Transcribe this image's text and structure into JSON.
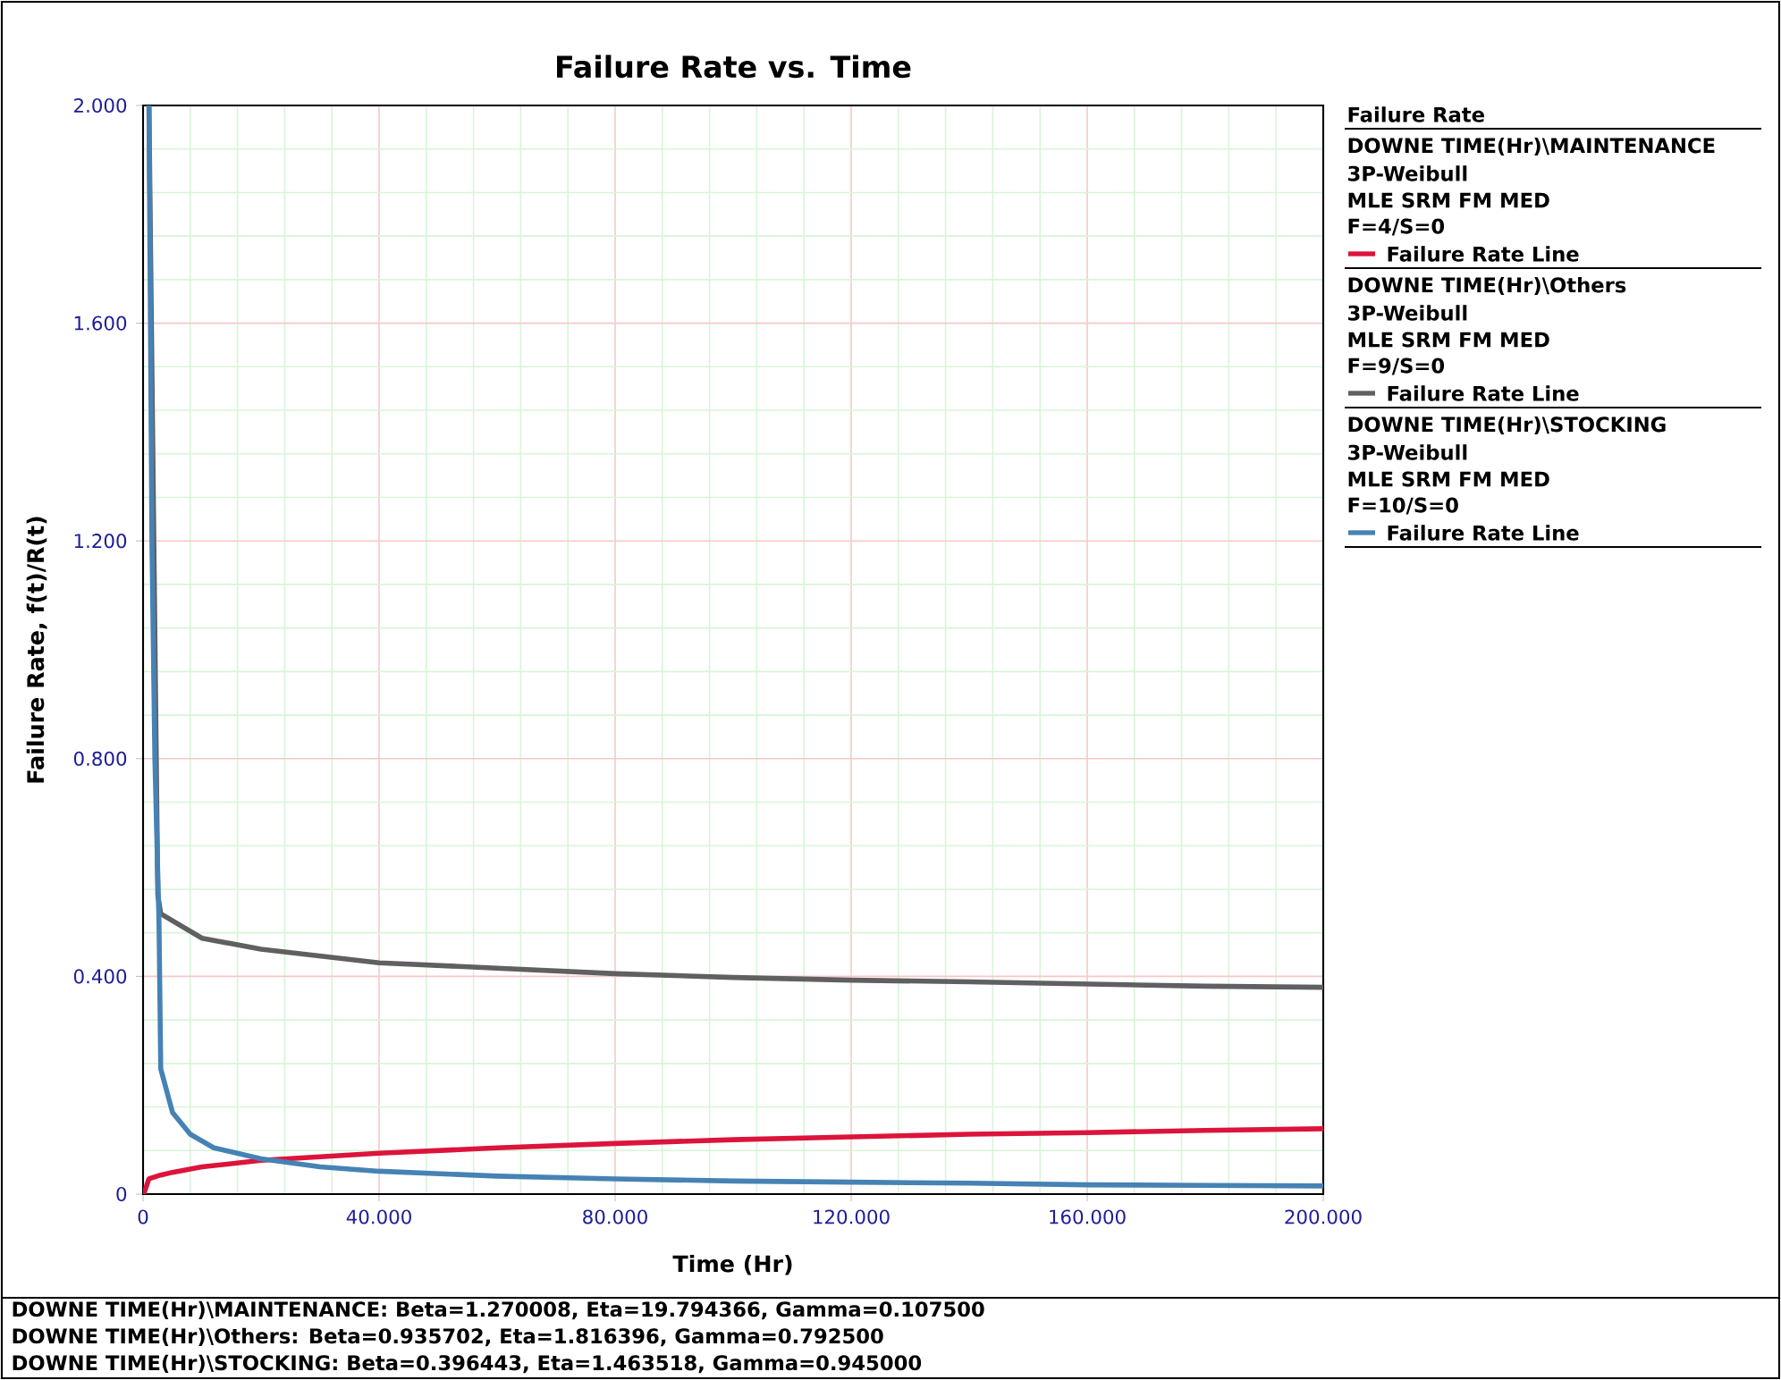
{
  "chart_data": {
    "type": "line",
    "title": "Failure Rate vs. Time",
    "xlabel": "Time (Hr)",
    "ylabel": "Failure Rate, f(t)/R(t)",
    "legend_title": "Failure Rate",
    "legend": "right",
    "grid": true,
    "xlim": [
      0,
      200
    ],
    "ylim": [
      0,
      2
    ],
    "xticks": [
      0,
      {
        "value": 40,
        "label": "40.000"
      },
      {
        "value": 80,
        "label": "80.000"
      },
      {
        "value": 120,
        "label": "120.000"
      },
      {
        "value": 160,
        "label": "160.000"
      },
      {
        "value": 200,
        "label": "200.000"
      }
    ],
    "yticks": [
      0,
      {
        "value": 0.4,
        "label": "0.400"
      },
      {
        "value": 0.8,
        "label": "0.800"
      },
      {
        "value": 1.2,
        "label": "1.200"
      },
      {
        "value": 1.6,
        "label": "1.600"
      },
      {
        "value": 2,
        "label": "2.000"
      }
    ],
    "series": [
      {
        "name": "Failure Rate Line",
        "color": "#dc143c",
        "x": [
          0.1075,
          1,
          3,
          5,
          10,
          20,
          40,
          60,
          80,
          100,
          120,
          140,
          160,
          180,
          200
        ],
        "values": [
          0,
          0.028,
          0.035,
          0.04,
          0.05,
          0.062,
          0.075,
          0.085,
          0.093,
          0.1,
          0.105,
          0.11,
          0.113,
          0.117,
          0.12
        ]
      },
      {
        "name": "Failure Rate Line",
        "color": "#606060",
        "x": [
          1,
          2.5,
          3,
          10,
          20,
          40,
          60,
          80,
          100,
          120,
          140,
          160,
          180,
          200
        ],
        "values": [
          2,
          0.55,
          0.515,
          0.47,
          0.45,
          0.425,
          0.415,
          0.405,
          0.398,
          0.393,
          0.39,
          0.386,
          0.382,
          0.38
        ]
      },
      {
        "name": "Failure Rate Line",
        "color": "#4682b4",
        "x": [
          1,
          1.5,
          2,
          2.7,
          3,
          5,
          8,
          12,
          20,
          30,
          40,
          60,
          80,
          100,
          120,
          140,
          160,
          180,
          200
        ],
        "values": [
          2,
          1.2,
          0.8,
          0.5,
          0.23,
          0.15,
          0.11,
          0.085,
          0.065,
          0.05,
          0.042,
          0.033,
          0.028,
          0.024,
          0.022,
          0.02,
          0.017,
          0.016,
          0.015
        ]
      }
    ],
    "annotations": [
      "DOWNE TIME(Hr)\\MAINTENANCE",
      "3P-Weibull",
      "MLE SRM FM MED",
      "F=4/S=0",
      "DOWNE TIME(Hr)\\Others",
      "3P-Weibull",
      "MLE SRM FM MED",
      "F=9/S=0",
      "DOWNE TIME(Hr)\\STOCKING",
      "3P-Weibull",
      "MLE SRM FM MED",
      "F=10/S=0",
      "DOWNE TIME(Hr)\\MAINTENANCE: Beta=1.270008, Eta=19.794366, Gamma=0.107500",
      "DOWNE TIME(Hr)\\Others: Beta=0.935702, Eta=1.816396, Gamma=0.792500",
      "DOWNE TIME(Hr)\\STOCKING: Beta=0.396443, Eta=1.463518, Gamma=0.945000"
    ]
  }
}
